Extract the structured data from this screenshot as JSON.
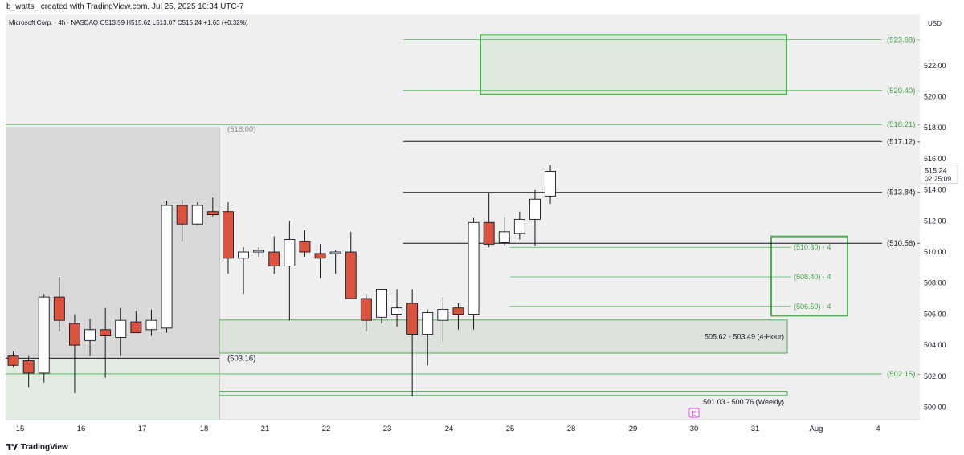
{
  "header": {
    "caption": "b_watts_ created with TradingView.com, Jul 25, 2025 10:34 UTC-7",
    "legend": "Microsoft Corp. · 4h · NASDAQ  O513.59  H515.62  L513.07  C515.24  +1.63 (+0.32%)",
    "currency": "USD"
  },
  "footer": {
    "brand": "TradingView"
  },
  "colors": {
    "bull_body": "#ffffff",
    "bear_body": "#d9533f",
    "candle_outline": "#131722",
    "zone_green": "#4caf50",
    "zone_green_text": "#43a047",
    "pane_bg": "#efefef",
    "shade_gray": "#d9d9d9",
    "shade_green": "#e2ece2",
    "earnings_marker": "#e040fb"
  },
  "chart_data": {
    "type": "candlestick",
    "symbol": "MSFT",
    "timeframe": "4h",
    "ylim": [
      499.2,
      525.3
    ],
    "x_ticks": [
      "15",
      "16",
      "17",
      "18",
      "21",
      "22",
      "23",
      "24",
      "25",
      "28",
      "29",
      "30",
      "31",
      "Aug",
      "4"
    ],
    "y_ticks": [
      "500.00",
      "502.00",
      "504.00",
      "506.00",
      "508.00",
      "510.00",
      "512.00",
      "514.00",
      "516.00",
      "518.00",
      "520.00",
      "522.00"
    ],
    "candles": [
      {
        "o": 503.3,
        "h": 503.6,
        "l": 502.6,
        "c": 502.7
      },
      {
        "o": 503.0,
        "h": 503.3,
        "l": 501.3,
        "c": 502.2
      },
      {
        "o": 502.2,
        "h": 507.3,
        "l": 501.6,
        "c": 507.1
      },
      {
        "o": 507.1,
        "h": 508.4,
        "l": 504.9,
        "c": 505.6
      },
      {
        "o": 505.4,
        "h": 506.0,
        "l": 500.9,
        "c": 504.0
      },
      {
        "o": 504.3,
        "h": 505.7,
        "l": 503.3,
        "c": 505.0
      },
      {
        "o": 505.0,
        "h": 506.4,
        "l": 501.9,
        "c": 504.6
      },
      {
        "o": 504.5,
        "h": 506.4,
        "l": 503.3,
        "c": 505.6
      },
      {
        "o": 505.5,
        "h": 506.2,
        "l": 504.8,
        "c": 504.8
      },
      {
        "o": 505.0,
        "h": 506.3,
        "l": 504.6,
        "c": 505.6
      },
      {
        "o": 505.1,
        "h": 513.3,
        "l": 504.8,
        "c": 513.0
      },
      {
        "o": 513.0,
        "h": 513.4,
        "l": 510.7,
        "c": 511.8
      },
      {
        "o": 511.8,
        "h": 513.2,
        "l": 511.7,
        "c": 513.0
      },
      {
        "o": 512.6,
        "h": 513.5,
        "l": 512.3,
        "c": 512.4
      },
      {
        "o": 512.6,
        "h": 513.2,
        "l": 508.6,
        "c": 509.6
      },
      {
        "o": 509.6,
        "h": 510.3,
        "l": 507.3,
        "c": 510.0
      },
      {
        "o": 510.0,
        "h": 510.3,
        "l": 509.7,
        "c": 510.1
      },
      {
        "o": 510.0,
        "h": 511.0,
        "l": 508.6,
        "c": 509.1
      },
      {
        "o": 509.1,
        "h": 512.0,
        "l": 505.6,
        "c": 510.8
      },
      {
        "o": 510.7,
        "h": 511.4,
        "l": 509.7,
        "c": 510.0
      },
      {
        "o": 509.9,
        "h": 510.5,
        "l": 508.3,
        "c": 509.6
      },
      {
        "o": 509.9,
        "h": 510.1,
        "l": 508.6,
        "c": 510.0
      },
      {
        "o": 510.0,
        "h": 511.3,
        "l": 507.1,
        "c": 507.0
      },
      {
        "o": 507.0,
        "h": 507.3,
        "l": 504.9,
        "c": 505.6
      },
      {
        "o": 505.8,
        "h": 507.6,
        "l": 505.4,
        "c": 507.6
      },
      {
        "o": 506.0,
        "h": 507.6,
        "l": 505.2,
        "c": 506.4
      },
      {
        "o": 506.7,
        "h": 507.6,
        "l": 500.7,
        "c": 504.7
      },
      {
        "o": 504.7,
        "h": 506.3,
        "l": 502.7,
        "c": 506.1
      },
      {
        "o": 505.6,
        "h": 507.1,
        "l": 504.2,
        "c": 506.3
      },
      {
        "o": 506.4,
        "h": 506.7,
        "l": 505.0,
        "c": 506.0
      },
      {
        "o": 506.0,
        "h": 512.2,
        "l": 505.0,
        "c": 511.9
      },
      {
        "o": 511.9,
        "h": 513.8,
        "l": 510.3,
        "c": 510.5
      },
      {
        "o": 510.6,
        "h": 512.2,
        "l": 510.4,
        "c": 511.3
      },
      {
        "o": 511.2,
        "h": 512.6,
        "l": 510.8,
        "c": 512.1
      },
      {
        "o": 512.1,
        "h": 514.0,
        "l": 510.4,
        "c": 513.4
      },
      {
        "o": 513.6,
        "h": 515.6,
        "l": 513.1,
        "c": 515.2
      }
    ],
    "horizontal_levels": [
      {
        "price": 523.68,
        "label": "(523.68)",
        "style": "green"
      },
      {
        "price": 520.4,
        "label": "(520.40)",
        "style": "green"
      },
      {
        "price": 518.21,
        "label": "(518.21)",
        "style": "green"
      },
      {
        "price": 517.12,
        "label": "(517.12)",
        "style": "black"
      },
      {
        "price": 513.84,
        "label": "(513.84)",
        "style": "black"
      },
      {
        "price": 510.56,
        "label": "(510.56)",
        "style": "black"
      },
      {
        "price": 502.15,
        "label": "(502.15)",
        "style": "green"
      }
    ],
    "target_levels": [
      {
        "price": 510.3,
        "label": "(510.30) · 4"
      },
      {
        "price": 508.4,
        "label": "(508.40) · 4"
      },
      {
        "price": 506.5,
        "label": "(506.50) · 4"
      }
    ],
    "zones": [
      {
        "label": "505.62 - 503.49 (4-Hour)",
        "top": 505.62,
        "bottom": 503.49
      },
      {
        "label": "501.03 - 500.76 (Weekly)",
        "top": 501.03,
        "bottom": 500.76
      }
    ],
    "annotations": {
      "left_box_label": "(518.00)",
      "left_line_label": "(503.16)",
      "last_price": "515.24",
      "countdown": "02:25:09",
      "earnings_marker": "E"
    }
  }
}
